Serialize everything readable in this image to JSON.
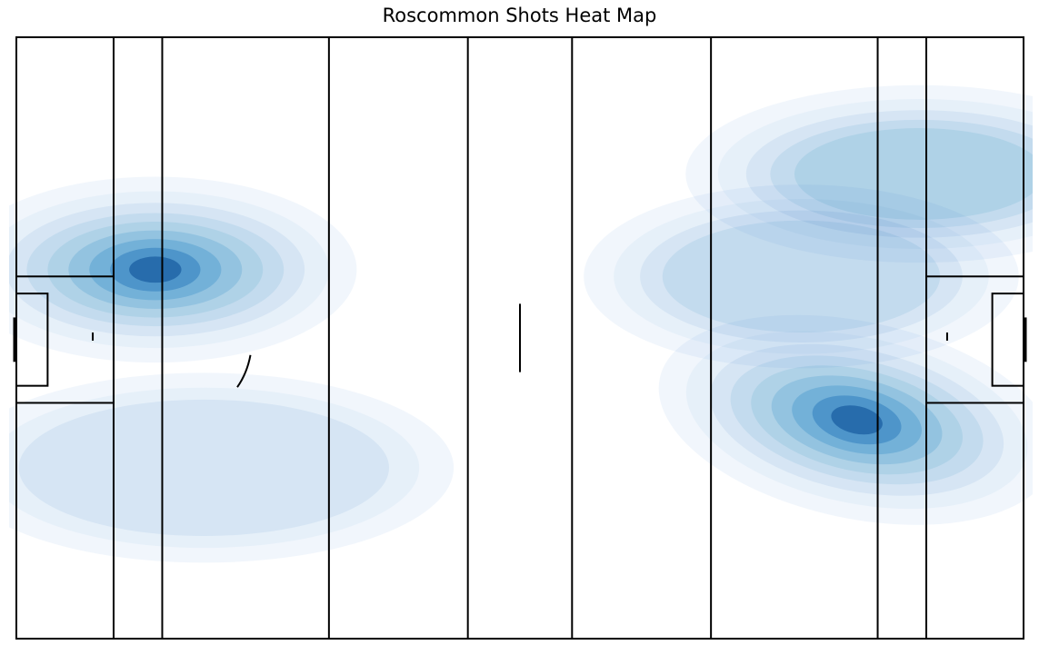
{
  "chart_data": {
    "type": "heatmap",
    "title": "Roscommon Shots Heat Map",
    "xlabel": "",
    "ylabel": "",
    "xlim": [
      0,
      145
    ],
    "ylim": [
      0,
      88
    ],
    "grid": false,
    "levels": 9,
    "colormap": [
      "#eff5fc",
      "#deebf7",
      "#c9ddf0",
      "#b5d4e9",
      "#9ecae1",
      "#7db8da",
      "#5aa3d1",
      "#2f7ec0",
      "#084b93"
    ],
    "hotspots": [
      {
        "x": 20,
        "y": 54,
        "intensity": 1.0
      },
      {
        "x": 27,
        "y": 25,
        "intensity": 0.35
      },
      {
        "x": 121,
        "y": 32,
        "intensity": 1.0
      },
      {
        "x": 130,
        "y": 68,
        "intensity": 0.55
      },
      {
        "x": 113,
        "y": 53,
        "intensity": 0.4
      }
    ]
  },
  "pitch": {
    "length": 145,
    "width": 88,
    "line_color": "#000000",
    "lines_x": [
      14,
      21,
      45,
      65,
      80,
      100,
      124,
      131
    ]
  }
}
